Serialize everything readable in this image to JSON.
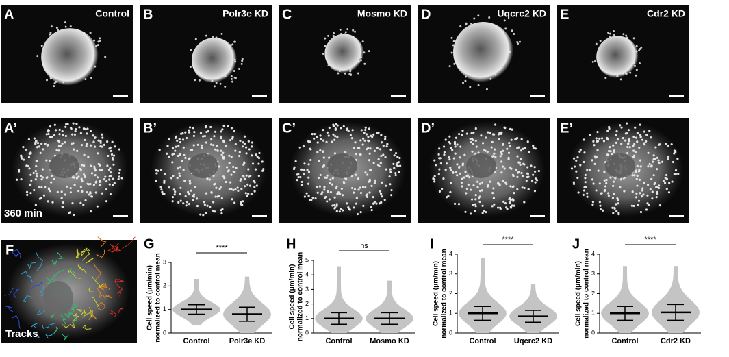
{
  "panels": {
    "top": [
      {
        "letter": "A",
        "label": "Control"
      },
      {
        "letter": "B",
        "label": "Polr3e KD"
      },
      {
        "letter": "C",
        "label": "Mosmo KD"
      },
      {
        "letter": "D",
        "label": "Uqcrc2 KD"
      },
      {
        "letter": "E",
        "label": "Cdr2 KD"
      }
    ],
    "middle": [
      {
        "letter": "A’"
      },
      {
        "letter": "B’"
      },
      {
        "letter": "C’"
      },
      {
        "letter": "D’"
      },
      {
        "letter": "E’"
      }
    ],
    "time_label": "360 min",
    "tracks": {
      "letter": "F",
      "label": "Tracks"
    }
  },
  "chart_data": [
    {
      "type": "dot",
      "panel": "G",
      "ylabel": [
        "Cell speed (μm/min)",
        "normalized to control mean"
      ],
      "annotation": "****",
      "categories": [
        "Control",
        "Polr3e KD"
      ],
      "values": [
        1.0,
        0.8
      ],
      "errors": [
        0.2,
        0.3
      ],
      "min": [
        0.35,
        0
      ],
      "max": [
        2.3,
        2.4
      ],
      "ylim": [
        0,
        3
      ],
      "yticks": [
        0,
        1,
        2,
        3
      ]
    },
    {
      "type": "dot",
      "panel": "H",
      "ylabel": [
        "Cell speed (μm/min)",
        "normalized to control mean"
      ],
      "annotation": "ns",
      "categories": [
        "Control",
        "Mosmo KD"
      ],
      "values": [
        1.0,
        1.0
      ],
      "errors": [
        0.4,
        0.4
      ],
      "min": [
        0,
        0
      ],
      "max": [
        4.6,
        3.6
      ],
      "ylim": [
        0,
        5
      ],
      "yticks": [
        0,
        1,
        2,
        3,
        4,
        5
      ]
    },
    {
      "type": "dot",
      "panel": "I",
      "ylabel": [
        "Cell speed (μm/min)",
        "normalized to control mean"
      ],
      "annotation": "****",
      "categories": [
        "Control",
        "Uqcrc2 KD"
      ],
      "values": [
        1.0,
        0.85
      ],
      "errors": [
        0.35,
        0.3
      ],
      "min": [
        0,
        0
      ],
      "max": [
        3.8,
        2.5
      ],
      "ylim": [
        0,
        4
      ],
      "yticks": [
        0,
        1,
        2,
        3,
        4
      ]
    },
    {
      "type": "dot",
      "panel": "J",
      "ylabel": [
        "Cell speed (μm/min)",
        "normalized to control mean"
      ],
      "annotation": "****",
      "categories": [
        "Control",
        "Cdr2 KD"
      ],
      "values": [
        1.0,
        1.05
      ],
      "errors": [
        0.35,
        0.4
      ],
      "min": [
        0,
        0
      ],
      "max": [
        3.4,
        3.4
      ],
      "ylim": [
        0,
        4
      ],
      "yticks": [
        0,
        1,
        2,
        3,
        4
      ]
    }
  ]
}
